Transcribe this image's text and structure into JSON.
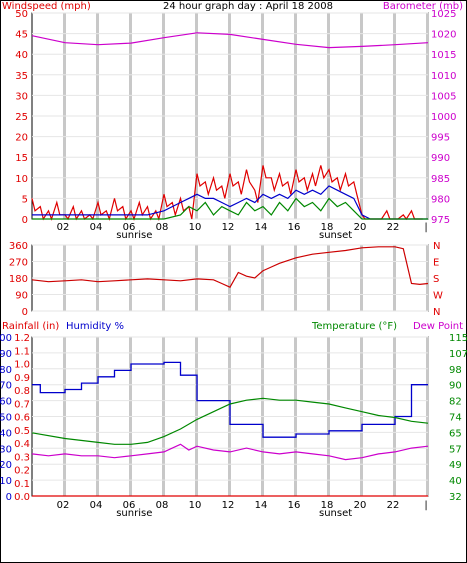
{
  "colors": {
    "wind": "#e00000",
    "gust": "#e00000",
    "avg_wind": "#0000cc",
    "windspeed_green": "#008800",
    "barometer": "#cc00cc",
    "direction": "#cc0000",
    "humidity": "#0000cc",
    "temperature": "#008800",
    "dewpoint": "#cc00cc",
    "rainfall": "#e00000",
    "grid": "#c8c8c8"
  },
  "chart_data": [
    {
      "type": "line",
      "title": "24 hour graph day : April 18 2008",
      "ylabel_left": "Windspeed (mph)",
      "ylabel_right": "Barometer (mb)",
      "ylim_left": [
        0,
        50
      ],
      "ylim_right": [
        975,
        1025
      ],
      "yticks_left": [
        "0",
        "5",
        "10",
        "15",
        "20",
        "25",
        "30",
        "35",
        "40",
        "45",
        "50"
      ],
      "yticks_right": [
        "975",
        "980",
        "985",
        "990",
        "995",
        "1000",
        "1005",
        "1010",
        "1015",
        "1020",
        "1025"
      ],
      "xticks": [
        "02",
        "04",
        "06",
        "08",
        "10",
        "12",
        "14",
        "16",
        "18",
        "20",
        "22",
        "|"
      ],
      "x_marker_labels": {
        "sunrise": "sunrise",
        "sunset": "sunset"
      },
      "grid": true,
      "series": [
        {
          "key": "barometer",
          "axis": "right",
          "x": [
            0,
            2,
            4,
            6,
            8,
            10,
            12,
            14,
            16,
            18,
            20,
            22,
            24
          ],
          "values": [
            1019.5,
            1017.8,
            1017.3,
            1017.7,
            1019.0,
            1020.2,
            1019.8,
            1018.6,
            1017.4,
            1016.6,
            1016.9,
            1017.3,
            1017.8
          ]
        },
        {
          "key": "gust",
          "axis": "left",
          "x": [
            0,
            0.5,
            1,
            1.5,
            2,
            2.5,
            3,
            3.5,
            4,
            4.5,
            5,
            5.5,
            6,
            6.5,
            7,
            7.5,
            8,
            8.5,
            9,
            9.5,
            10,
            10.5,
            11,
            11.5,
            12,
            12.5,
            13,
            13.5,
            14,
            14.5,
            15,
            15.5,
            16,
            16.5,
            17,
            17.5,
            18,
            18.5,
            19,
            19.5,
            20,
            20.5,
            21,
            21.5,
            22,
            22.5,
            23,
            23.5
          ],
          "values": [
            5,
            3,
            2,
            4,
            1,
            3,
            2,
            1,
            4,
            2,
            5,
            3,
            2,
            4,
            3,
            2,
            6,
            4,
            5,
            3,
            11,
            9,
            10,
            8,
            11,
            9,
            12,
            7,
            13,
            10,
            11,
            9,
            12,
            10,
            11,
            13,
            12,
            10,
            11,
            9,
            1,
            0,
            0,
            2,
            0,
            1,
            2,
            0
          ]
        },
        {
          "key": "avg_wind",
          "axis": "left",
          "x": [
            0,
            1,
            2,
            3,
            4,
            5,
            6,
            7,
            8,
            8.5,
            9,
            9.5,
            10,
            10.5,
            11,
            11.5,
            12,
            12.5,
            13,
            13.5,
            14,
            14.5,
            15,
            15.5,
            16,
            16.5,
            17,
            17.5,
            18,
            18.5,
            19,
            19.5,
            20,
            20.5,
            21,
            22,
            23,
            24
          ],
          "values": [
            1,
            1,
            1,
            1,
            1,
            1,
            1,
            1,
            2,
            3,
            4,
            5,
            6,
            5,
            5,
            4,
            3,
            4,
            5,
            4,
            6,
            5,
            6,
            5,
            7,
            6,
            7,
            6,
            8,
            7,
            6,
            5,
            1,
            0,
            0,
            0,
            0,
            0
          ]
        },
        {
          "key": "windspeed_green",
          "axis": "left",
          "x": [
            0,
            2,
            4,
            6,
            8,
            9,
            9.5,
            10,
            10.5,
            11,
            11.5,
            12,
            12.5,
            13,
            13.5,
            14,
            14.5,
            15,
            15.5,
            16,
            16.5,
            17,
            17.5,
            18,
            18.5,
            19,
            19.5,
            20,
            20.5,
            22,
            24
          ],
          "values": [
            0,
            0,
            0,
            0,
            0,
            1,
            3,
            2,
            4,
            1,
            3,
            2,
            1,
            4,
            2,
            3,
            1,
            4,
            2,
            5,
            3,
            4,
            2,
            5,
            3,
            4,
            2,
            0,
            0,
            0,
            0
          ]
        }
      ]
    },
    {
      "type": "line",
      "ylim": [
        0,
        360
      ],
      "yticks_left": [
        "0",
        "90",
        "180",
        "270",
        "360"
      ],
      "yticks_right": [
        "N",
        "W",
        "S",
        "E",
        "N"
      ],
      "grid": true,
      "series": [
        {
          "key": "direction",
          "x": [
            0,
            1,
            2,
            3,
            4,
            5,
            6,
            7,
            8,
            9,
            10,
            11,
            11.5,
            12,
            12.5,
            13,
            13.5,
            14,
            14.5,
            15,
            16,
            17,
            18,
            19,
            20,
            21,
            22,
            22.5,
            23,
            23.5,
            24
          ],
          "values": [
            170,
            160,
            165,
            170,
            160,
            165,
            170,
            175,
            170,
            165,
            175,
            170,
            150,
            130,
            210,
            190,
            180,
            220,
            240,
            260,
            290,
            310,
            320,
            330,
            345,
            350,
            350,
            340,
            150,
            145,
            150
          ]
        }
      ]
    },
    {
      "type": "line",
      "ylabel_left_rain": "Rainfall (in)",
      "ylabel_left_humidity": "Humidity %",
      "ylabel_right_temp": "Temperature (°F)",
      "ylabel_right_dew": "Dew Point",
      "ylim_humidity": [
        0,
        100
      ],
      "ylim_rain": [
        0,
        1.2
      ],
      "ylim_temp": [
        32,
        115
      ],
      "yticks_humidity": [
        "0",
        "10",
        "20",
        "30",
        "40",
        "50",
        "60",
        "70",
        "80",
        "90",
        "100"
      ],
      "yticks_rain": [
        "0.0",
        "0.1",
        "0.2",
        "0.3",
        "0.4",
        "0.5",
        "0.6",
        "0.7",
        "0.8",
        "0.9",
        "1.0",
        "1.1",
        "1.2"
      ],
      "yticks_temp": [
        "32",
        "40",
        "49",
        "57",
        "65",
        "74",
        "82",
        "90",
        "98",
        "107",
        "115"
      ],
      "xticks": [
        "02",
        "04",
        "06",
        "08",
        "10",
        "12",
        "14",
        "16",
        "18",
        "20",
        "22",
        "|"
      ],
      "x_marker_labels": {
        "sunrise": "sunrise",
        "sunset": "sunset"
      },
      "grid": true,
      "series": [
        {
          "key": "humidity",
          "axis": "humidity",
          "x": [
            0,
            0.5,
            0.5,
            2,
            2,
            3,
            3,
            4,
            4,
            5,
            5,
            6,
            6,
            8,
            8,
            9,
            9,
            10,
            10,
            12,
            12,
            14,
            14,
            16,
            16,
            18,
            18,
            20,
            20,
            22,
            22,
            23,
            23,
            24
          ],
          "values": [
            70,
            70,
            65,
            65,
            67,
            67,
            71,
            71,
            75,
            75,
            79,
            79,
            83,
            83,
            84,
            84,
            76,
            76,
            60,
            60,
            45,
            45,
            37,
            37,
            39,
            39,
            41,
            41,
            45,
            45,
            50,
            50,
            70,
            70
          ]
        },
        {
          "key": "temperature",
          "axis": "temp",
          "x": [
            0,
            2,
            4,
            5,
            6,
            7,
            8,
            9,
            10,
            11,
            12,
            13,
            14,
            15,
            16,
            17,
            18,
            19,
            20,
            21,
            22,
            23,
            24
          ],
          "values": [
            65,
            62,
            60,
            59,
            59,
            60,
            63,
            67,
            72,
            76,
            80,
            82,
            83,
            82,
            82,
            81,
            80,
            78,
            76,
            74,
            73,
            71,
            70
          ]
        },
        {
          "key": "dewpoint",
          "axis": "temp",
          "x": [
            0,
            1,
            2,
            3,
            4,
            5,
            6,
            7,
            8,
            8.5,
            9,
            9.5,
            10,
            11,
            12,
            13,
            14,
            15,
            16,
            17,
            18,
            19,
            20,
            21,
            22,
            23,
            24
          ],
          "values": [
            54,
            53,
            54,
            53,
            53,
            52,
            53,
            54,
            55,
            57,
            59,
            56,
            58,
            56,
            55,
            57,
            55,
            54,
            55,
            54,
            53,
            51,
            52,
            54,
            55,
            57,
            58
          ]
        },
        {
          "key": "rainfall",
          "axis": "rain",
          "x": [
            0,
            24
          ],
          "values": [
            0.0,
            0.0
          ]
        }
      ]
    }
  ]
}
